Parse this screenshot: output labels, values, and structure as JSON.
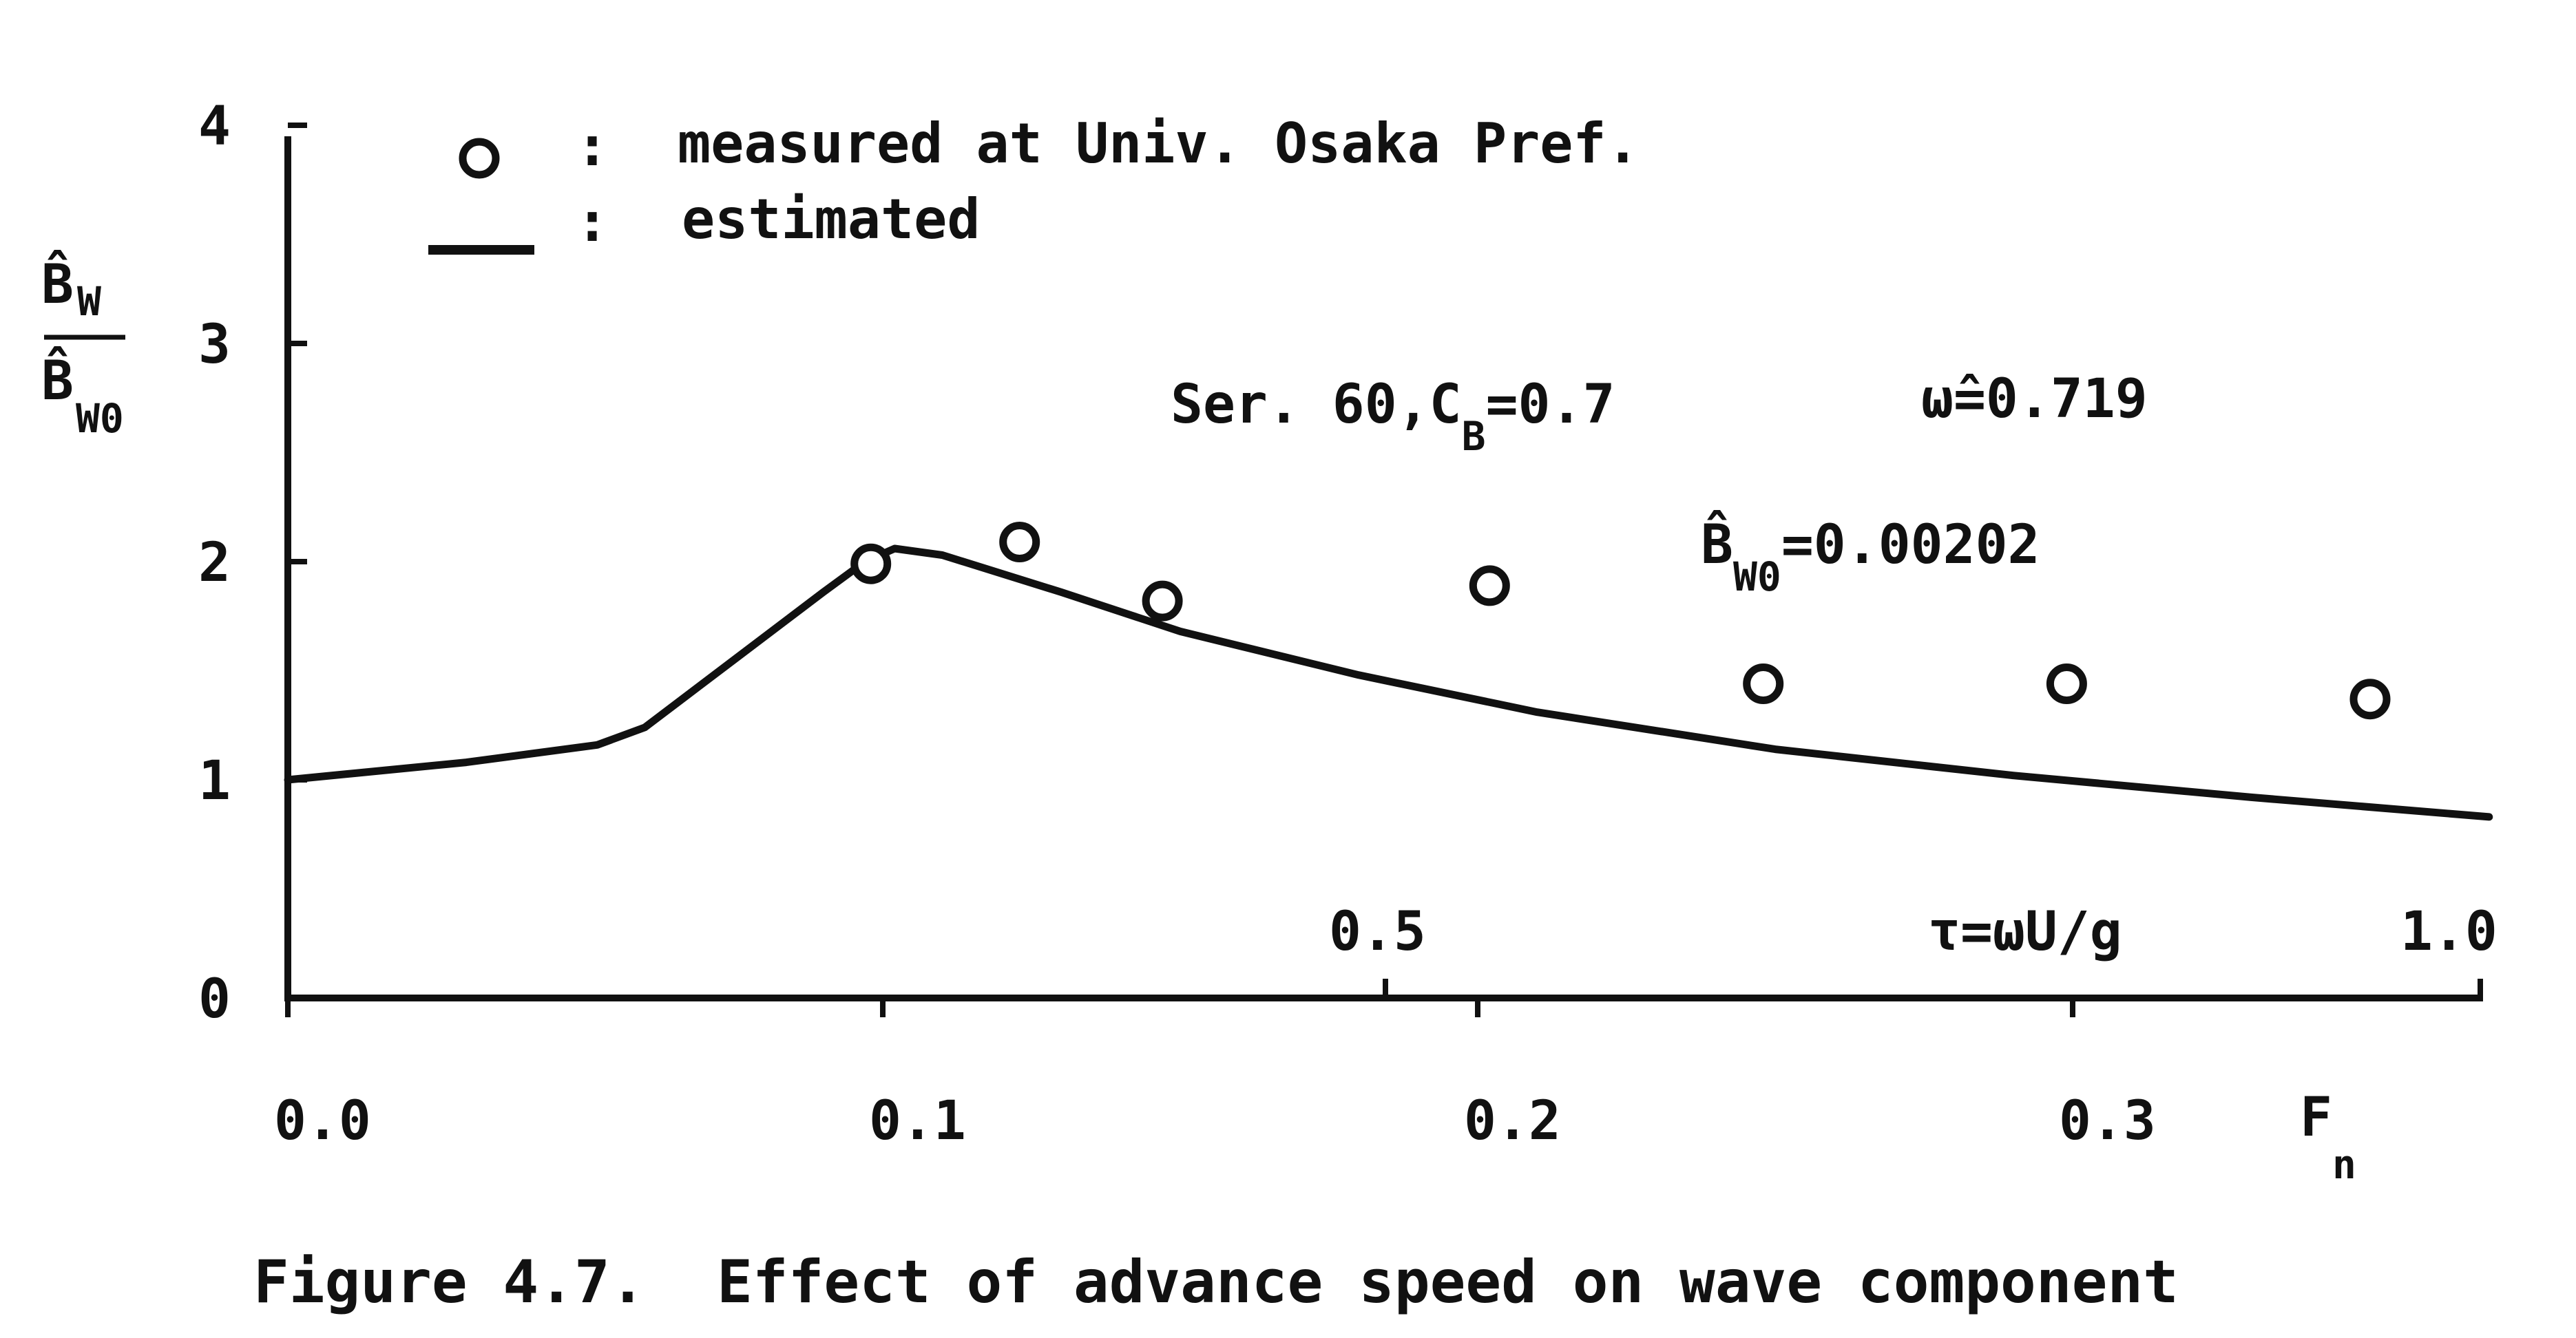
{
  "chart_data": {
    "type": "scatter",
    "x_axis_label": "F",
    "x_axis_label_sub": "n",
    "x_ticks": [
      "0.0",
      "0.1",
      "0.2",
      "0.3"
    ],
    "x_range": [
      0.0,
      0.37
    ],
    "secondary_axis": {
      "label": "τ=ωU/g",
      "ticks": [
        "0.5",
        "1.0"
      ]
    },
    "y_axis_label": {
      "numerator": "B̂",
      "numerator_sub": "W",
      "denominator": "B̂",
      "denominator_sub": "W0"
    },
    "y_ticks": [
      "0",
      "1",
      "2",
      "3",
      "4"
    ],
    "y_range": [
      0,
      4
    ],
    "annotations": {
      "series_line1_main": "Ser. 60,C",
      "series_line1_sub": "B",
      "series_line1_end": "=0.7",
      "omega": "ω̂=0.719",
      "bw0_main": "B̂",
      "bw0_sub": "W0",
      "bw0_value": "=0.00202"
    },
    "series": [
      {
        "name": "measured at Univ. Osaka Pref.",
        "marker": "circle",
        "x": [
          0.098,
          0.123,
          0.147,
          0.202,
          0.248,
          0.299,
          0.35
        ],
        "y": [
          1.99,
          2.09,
          1.82,
          1.89,
          1.44,
          1.44,
          1.37
        ]
      },
      {
        "name": "estimated",
        "marker": "line",
        "x": [
          0.0,
          0.03,
          0.052,
          0.06,
          0.075,
          0.09,
          0.097,
          0.102,
          0.11,
          0.13,
          0.15,
          0.18,
          0.21,
          0.25,
          0.29,
          0.33,
          0.37
        ],
        "y": [
          1.0,
          1.08,
          1.16,
          1.24,
          1.55,
          1.86,
          2.0,
          2.06,
          2.03,
          1.86,
          1.68,
          1.48,
          1.31,
          1.14,
          1.02,
          0.92,
          0.83
        ]
      }
    ],
    "legend": {
      "position": "top-left",
      "separator": ":"
    },
    "caption": "Figure 4.7.  Effect of advance speed on wave component"
  }
}
